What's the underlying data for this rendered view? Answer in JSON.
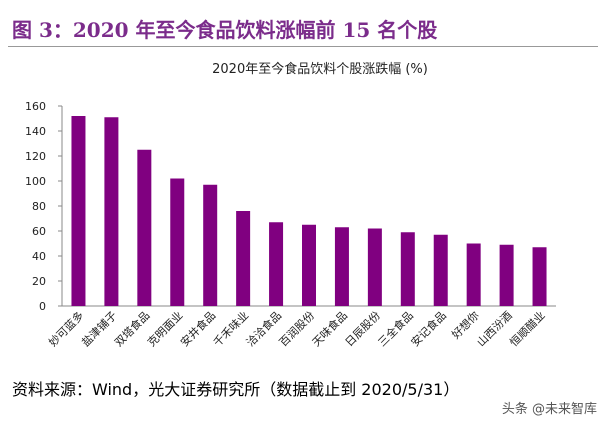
{
  "header": {
    "title": "图 3：2020 年至今食品饮料涨幅前 15 名个股"
  },
  "chart_data": {
    "type": "bar",
    "title": "2020年至今食品饮料个股涨跌幅 (%)",
    "categories": [
      "妙可蓝多",
      "盐津铺子",
      "双塔食品",
      "克明面业",
      "安井食品",
      "千禾味业",
      "洽洽食品",
      "百润股份",
      "天味食品",
      "日辰股份",
      "三全食品",
      "安记食品",
      "好想你",
      "山西汾酒",
      "恒顺醋业"
    ],
    "values": [
      152,
      151,
      125,
      102,
      97,
      76,
      67,
      65,
      63,
      62,
      59,
      57,
      50,
      49,
      47
    ],
    "color": "#800080",
    "ylim": [
      0,
      160
    ],
    "yticks": [
      0,
      20,
      40,
      60,
      80,
      100,
      120,
      140,
      160
    ],
    "grid": false
  },
  "source": "资料来源：Wind，光大证券研究所（数据截止到 2020/5/31）",
  "watermark": "头条 @未来智库"
}
